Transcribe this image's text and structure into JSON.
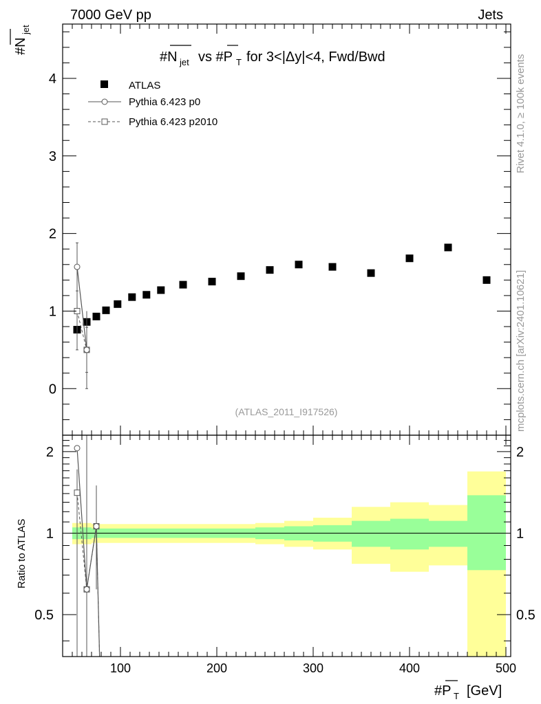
{
  "header": {
    "left": "7000 GeV pp",
    "right": "Jets"
  },
  "side": {
    "rivet": "Rivet 4.1.0, ≥ 100k events",
    "mcplots": "mcplots.cern.ch [arXiv:2401.10621]"
  },
  "chart_data": {
    "type": "scatter",
    "title": "#N_jet vs #P_T for 3<|Δy|<4, Fwd/Bwd",
    "analysis_id": "(ATLAS_2011_I917526)",
    "xlabel": "#P_T [GeV]",
    "ylabel": "#N_jet",
    "ratio_ylabel": "Ratio to ATLAS",
    "xlim": [
      40,
      505
    ],
    "ylim": [
      -0.6,
      4.7
    ],
    "ratio_ylim": [
      0.35,
      2.3
    ],
    "x_ticks": [
      100,
      200,
      300,
      400,
      500
    ],
    "y_ticks": [
      0,
      1,
      2,
      3,
      4
    ],
    "ratio_ticks": [
      0.5,
      1,
      2
    ],
    "legend": {
      "atlas": "ATLAS",
      "p0": "Pythia 6.423 p0",
      "p2010": "Pythia 6.423 p2010"
    },
    "atlas": {
      "x": [
        55,
        65,
        75,
        85,
        97,
        112,
        127,
        142,
        165,
        195,
        225,
        255,
        285,
        320,
        360,
        400,
        440,
        480
      ],
      "y": [
        0.76,
        0.86,
        0.93,
        1.01,
        1.09,
        1.18,
        1.21,
        1.27,
        1.34,
        1.38,
        1.45,
        1.53,
        1.6,
        1.57,
        1.49,
        1.68,
        1.82,
        1.4
      ]
    },
    "pythia_p0": {
      "x": [
        55,
        65
      ],
      "y": [
        1.57,
        0.5
      ],
      "yerr": [
        0.31,
        0.29
      ]
    },
    "pythia_p2010": {
      "x": [
        55,
        65
      ],
      "y": [
        1.0,
        0.5
      ],
      "yerr": [
        0.5,
        0.5
      ]
    },
    "ratio_p0": {
      "x": [
        55,
        65,
        75,
        80
      ],
      "y": [
        2.06,
        0.62,
        1.06,
        0.2
      ]
    },
    "ratio_p2010": {
      "x": [
        55,
        65,
        75,
        80
      ],
      "y": [
        1.41,
        0.62,
        1.06,
        0.2
      ]
    },
    "uncertainty_bands": {
      "edges": [
        50,
        60,
        70,
        80,
        90,
        105,
        120,
        135,
        150,
        180,
        210,
        240,
        270,
        300,
        340,
        380,
        420,
        460,
        500
      ],
      "stat_lo": [
        0.95,
        0.95,
        0.96,
        0.96,
        0.96,
        0.96,
        0.96,
        0.96,
        0.96,
        0.96,
        0.96,
        0.95,
        0.94,
        0.93,
        0.89,
        0.87,
        0.89,
        0.73
      ],
      "stat_hi": [
        1.05,
        1.05,
        1.04,
        1.04,
        1.04,
        1.04,
        1.04,
        1.04,
        1.04,
        1.04,
        1.04,
        1.05,
        1.06,
        1.07,
        1.11,
        1.13,
        1.11,
        1.38
      ],
      "syst_lo": [
        0.91,
        0.91,
        0.92,
        0.92,
        0.92,
        0.92,
        0.92,
        0.92,
        0.92,
        0.92,
        0.92,
        0.91,
        0.89,
        0.87,
        0.77,
        0.72,
        0.76,
        0.35
      ],
      "syst_hi": [
        1.09,
        1.09,
        1.08,
        1.08,
        1.08,
        1.08,
        1.08,
        1.08,
        1.08,
        1.08,
        1.08,
        1.09,
        1.11,
        1.14,
        1.25,
        1.3,
        1.27,
        1.69
      ]
    },
    "colors": {
      "stat_band": "#99ff99",
      "syst_band": "#ffff99",
      "line": "#000000",
      "mc": "#555555"
    }
  }
}
